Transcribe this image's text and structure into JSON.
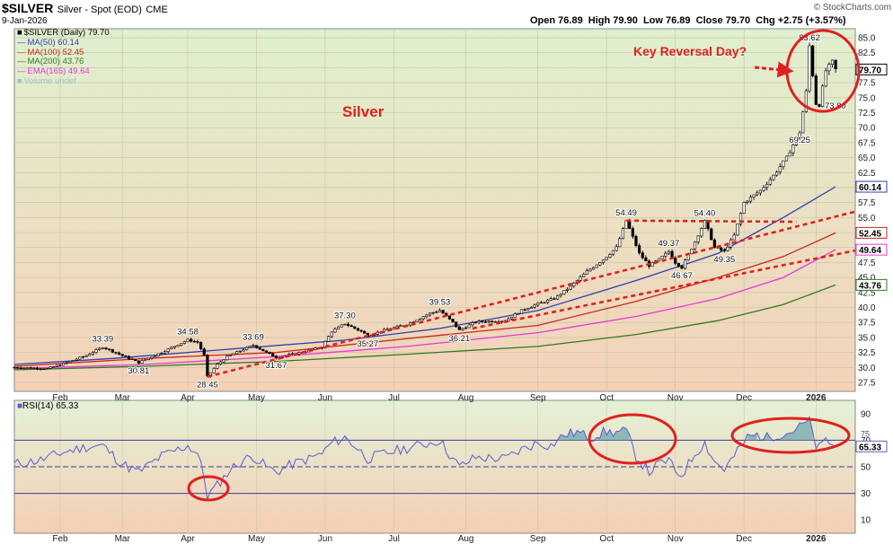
{
  "header": {
    "title": "$SILVER",
    "subtitle": "Silver - Spot (EOD)",
    "exchange": "CME",
    "date": "9-Jan-2026",
    "brand": "© StockCharts.com",
    "ohlc": "Open 76.89  High 79.90  Low 76.89  Close 79.70  Chg +2.75 (+3.57%)"
  },
  "legend": [
    {
      "label": "$SILVER (Daily) 79.70",
      "color": "#000000"
    },
    {
      "label": "MA(50) 60.14",
      "color": "#2b3fb0"
    },
    {
      "label": "MA(100) 52.45",
      "color": "#c8281e"
    },
    {
      "label": "MA(200) 43.76",
      "color": "#2f7a22"
    },
    {
      "label": "EMA(165) 49.64",
      "color": "#e23ad8"
    },
    {
      "label": "Volume undef",
      "color": "#9bc3cf"
    }
  ],
  "rsi_legend": "RSI(14) 65.33",
  "annotations": {
    "silver_label": "Silver",
    "key_reversal": "Key Reversal Day?"
  },
  "colors": {
    "price_bg_top": "#dff0cf",
    "price_bg_bottom": "#f4d2b8",
    "rsi_bg_top": "#e4f1d6",
    "rsi_bg_bottom": "#f4cfb4",
    "annotation_red": "#e02020",
    "rsi_line": "#5a5ad0",
    "rsi_fill": "#6fa8b0"
  },
  "chart_data": [
    {
      "type": "candlestick",
      "title": "$SILVER Silver - Spot (EOD) CME",
      "xlabel": "",
      "ylabel": "",
      "x_ticks": [
        "Feb",
        "Mar",
        "Apr",
        "May",
        "Jun",
        "Jul",
        "Aug",
        "Sep",
        "Oct",
        "Nov",
        "Dec",
        "2026"
      ],
      "y_ticks": [
        27.5,
        30.0,
        32.5,
        35.0,
        37.5,
        40.0,
        42.5,
        45.0,
        47.5,
        50.0,
        52.5,
        55.0,
        57.5,
        60.0,
        62.5,
        65.0,
        67.5,
        70.0,
        72.5,
        75.0,
        77.5,
        80.0,
        82.5,
        85.0
      ],
      "ylim": [
        26.0,
        86.5
      ],
      "price_path": [
        [
          0,
          30.0
        ],
        [
          10,
          29.8
        ],
        [
          15,
          30.6
        ],
        [
          22,
          32.0
        ],
        [
          27,
          33.39
        ],
        [
          35,
          31.5
        ],
        [
          38,
          30.81
        ],
        [
          45,
          32.5
        ],
        [
          53,
          34.58
        ],
        [
          56,
          34.2
        ],
        [
          58,
          32.0
        ],
        [
          59,
          28.45
        ],
        [
          62,
          30.5
        ],
        [
          65,
          31.8
        ],
        [
          70,
          33.0
        ],
        [
          73,
          33.69
        ],
        [
          77,
          32.5
        ],
        [
          80,
          31.67
        ],
        [
          85,
          32.2
        ],
        [
          90,
          32.8
        ],
        [
          94,
          33.4
        ],
        [
          97,
          36.0
        ],
        [
          101,
          37.3
        ],
        [
          106,
          36.0
        ],
        [
          108,
          35.27
        ],
        [
          113,
          36.2
        ],
        [
          120,
          37.2
        ],
        [
          127,
          39.0
        ],
        [
          130,
          39.53
        ],
        [
          134,
          37.5
        ],
        [
          136,
          36.21
        ],
        [
          141,
          37.6
        ],
        [
          150,
          37.8
        ],
        [
          155,
          39.5
        ],
        [
          160,
          40.6
        ],
        [
          165,
          41.5
        ],
        [
          170,
          43.5
        ],
        [
          175,
          46.0
        ],
        [
          180,
          48.0
        ],
        [
          184,
          50.0
        ],
        [
          187,
          54.49
        ],
        [
          191,
          49.0
        ],
        [
          194,
          47.0
        ],
        [
          197,
          48.0
        ],
        [
          200,
          49.37
        ],
        [
          202,
          47.5
        ],
        [
          204,
          46.67
        ],
        [
          208,
          51.0
        ],
        [
          211,
          54.4
        ],
        [
          214,
          50.0
        ],
        [
          217,
          49.35
        ],
        [
          220,
          52.0
        ],
        [
          223,
          57.5
        ],
        [
          228,
          59.5
        ],
        [
          232,
          62.0
        ],
        [
          236,
          65.0
        ],
        [
          240,
          69.25
        ],
        [
          242,
          76.0
        ],
        [
          243,
          83.62
        ],
        [
          245,
          74.0
        ],
        [
          246,
          73.8
        ],
        [
          248,
          79.5
        ],
        [
          250,
          81.0
        ],
        [
          251,
          79.7
        ]
      ],
      "series": [
        {
          "name": "MA(50)",
          "color": "#2b3fb0",
          "values": [
            [
              0,
              30.5
            ],
            [
              30,
              31.5
            ],
            [
              60,
              32.8
            ],
            [
              100,
              34.5
            ],
            [
              130,
              36.5
            ],
            [
              160,
              39.5
            ],
            [
              190,
              44.5
            ],
            [
              215,
              49.0
            ],
            [
              235,
              55.0
            ],
            [
              251,
              60.14
            ]
          ]
        },
        {
          "name": "MA(100)",
          "color": "#c8281e",
          "values": [
            [
              0,
              30.2
            ],
            [
              40,
              31.5
            ],
            [
              80,
              32.5
            ],
            [
              120,
              34.8
            ],
            [
              160,
              37.0
            ],
            [
              190,
              41.0
            ],
            [
              215,
              45.0
            ],
            [
              235,
              48.5
            ],
            [
              251,
              52.45
            ]
          ]
        },
        {
          "name": "EMA(165)",
          "color": "#e23ad8",
          "values": [
            [
              0,
              29.8
            ],
            [
              40,
              30.5
            ],
            [
              80,
              31.8
            ],
            [
              120,
              33.5
            ],
            [
              160,
              35.8
            ],
            [
              190,
              38.5
            ],
            [
              215,
              41.5
            ],
            [
              235,
              45.0
            ],
            [
              251,
              49.64
            ]
          ]
        },
        {
          "name": "MA(200)",
          "color": "#2f7a22",
          "values": [
            [
              0,
              29.6
            ],
            [
              40,
              30.2
            ],
            [
              80,
              31.0
            ],
            [
              120,
              32.2
            ],
            [
              160,
              33.5
            ],
            [
              190,
              35.5
            ],
            [
              215,
              37.8
            ],
            [
              235,
              40.5
            ],
            [
              251,
              43.76
            ]
          ]
        }
      ],
      "point_labels": [
        {
          "x": 27,
          "y": 33.39,
          "text": "33.39",
          "pos": "above"
        },
        {
          "x": 38,
          "y": 30.81,
          "text": "30.81",
          "pos": "below"
        },
        {
          "x": 53,
          "y": 34.58,
          "text": "34.58",
          "pos": "above"
        },
        {
          "x": 59,
          "y": 28.45,
          "text": "28.45",
          "pos": "below"
        },
        {
          "x": 73,
          "y": 33.69,
          "text": "33.69",
          "pos": "above"
        },
        {
          "x": 80,
          "y": 31.67,
          "text": "31.67",
          "pos": "below"
        },
        {
          "x": 101,
          "y": 37.3,
          "text": "37.30",
          "pos": "above"
        },
        {
          "x": 108,
          "y": 35.27,
          "text": "35.27",
          "pos": "below"
        },
        {
          "x": 130,
          "y": 39.53,
          "text": "39.53",
          "pos": "above"
        },
        {
          "x": 136,
          "y": 36.21,
          "text": "36.21",
          "pos": "below"
        },
        {
          "x": 187,
          "y": 54.49,
          "text": "54.49",
          "pos": "above"
        },
        {
          "x": 200,
          "y": 49.37,
          "text": "49.37",
          "pos": "above"
        },
        {
          "x": 204,
          "y": 46.67,
          "text": "46.67",
          "pos": "below"
        },
        {
          "x": 211,
          "y": 54.4,
          "text": "54.40",
          "pos": "above"
        },
        {
          "x": 217,
          "y": 49.35,
          "text": "49.35",
          "pos": "below"
        },
        {
          "x": 240,
          "y": 69.25,
          "text": "69.25",
          "pos": "below"
        },
        {
          "x": 243,
          "y": 83.62,
          "text": "83.62",
          "pos": "above"
        },
        {
          "x": 246,
          "y": 73.8,
          "text": "73.80",
          "pos": "right"
        }
      ],
      "axis_value_labels": [
        {
          "value": 79.7,
          "text": "79.70"
        },
        {
          "value": 60.14,
          "text": "60.14"
        },
        {
          "value": 52.45,
          "text": "52.45"
        },
        {
          "value": 49.64,
          "text": "49.64"
        },
        {
          "value": 43.76,
          "text": "43.76"
        }
      ],
      "trendlines": [
        {
          "name": "uptrend-lower",
          "from": [
            59,
            28.45
          ],
          "to": [
            257,
            56.0
          ]
        },
        {
          "name": "uptrend-upper",
          "from": [
            140,
            36.5
          ],
          "to": [
            257,
            49.5
          ]
        },
        {
          "name": "horizontal-resistance",
          "from": [
            187,
            54.49
          ],
          "to": [
            239,
            54.3
          ]
        }
      ]
    },
    {
      "type": "line",
      "title": "RSI(14) 65.33",
      "y_ticks": [
        10,
        30,
        50,
        70,
        90
      ],
      "ylim": [
        0,
        100
      ],
      "levels": [
        30,
        50,
        70
      ],
      "values": [
        [
          0,
          52
        ],
        [
          8,
          55
        ],
        [
          15,
          61
        ],
        [
          22,
          65
        ],
        [
          27,
          66
        ],
        [
          33,
          52
        ],
        [
          38,
          46
        ],
        [
          45,
          58
        ],
        [
          53,
          66
        ],
        [
          56,
          60
        ],
        [
          58,
          42
        ],
        [
          59,
          28
        ],
        [
          62,
          36
        ],
        [
          66,
          48
        ],
        [
          70,
          55
        ],
        [
          73,
          58
        ],
        [
          77,
          50
        ],
        [
          80,
          46
        ],
        [
          85,
          52
        ],
        [
          90,
          56
        ],
        [
          94,
          60
        ],
        [
          97,
          68
        ],
        [
          101,
          72
        ],
        [
          104,
          66
        ],
        [
          108,
          56
        ],
        [
          113,
          60
        ],
        [
          120,
          64
        ],
        [
          127,
          68
        ],
        [
          130,
          70
        ],
        [
          134,
          56
        ],
        [
          136,
          50
        ],
        [
          141,
          57
        ],
        [
          150,
          56
        ],
        [
          155,
          63
        ],
        [
          160,
          68
        ],
        [
          164,
          66
        ],
        [
          168,
          74
        ],
        [
          172,
          76
        ],
        [
          176,
          72
        ],
        [
          180,
          76
        ],
        [
          184,
          76
        ],
        [
          187,
          77
        ],
        [
          190,
          58
        ],
        [
          194,
          46
        ],
        [
          197,
          52
        ],
        [
          200,
          55
        ],
        [
          202,
          46
        ],
        [
          204,
          44
        ],
        [
          208,
          60
        ],
        [
          211,
          68
        ],
        [
          214,
          54
        ],
        [
          217,
          48
        ],
        [
          220,
          58
        ],
        [
          224,
          72
        ],
        [
          227,
          74
        ],
        [
          230,
          72
        ],
        [
          233,
          74
        ],
        [
          236,
          75
        ],
        [
          240,
          80
        ],
        [
          241,
          82
        ],
        [
          243,
          84
        ],
        [
          245,
          66
        ],
        [
          246,
          64
        ],
        [
          248,
          70
        ],
        [
          250,
          67
        ],
        [
          251,
          65.33
        ]
      ],
      "last_value_label": "65.33",
      "axis_extra_label": "75",
      "x_ticks": [
        "Feb",
        "Mar",
        "Apr",
        "May",
        "Jun",
        "Jul",
        "Aug",
        "Sep",
        "Oct",
        "Nov",
        "Dec",
        "2026"
      ]
    }
  ]
}
